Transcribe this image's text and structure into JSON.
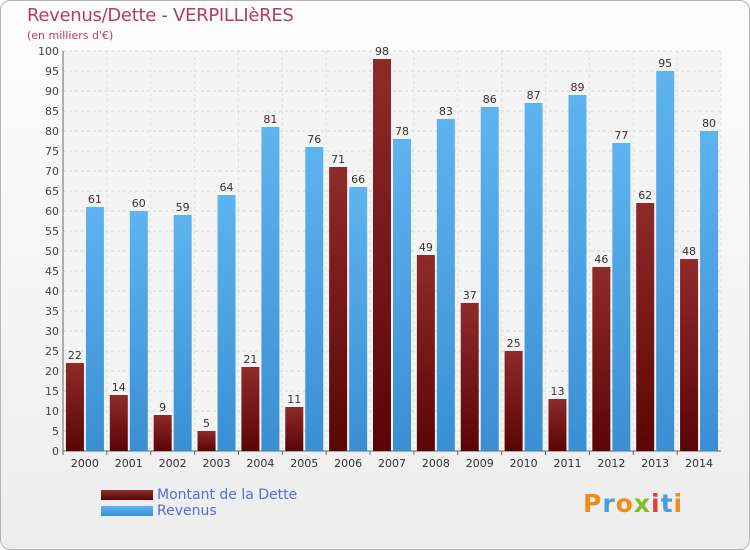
{
  "title": "Revenus/Dette - VERPILLIèRES",
  "subtitle": "(en milliers d'€)",
  "colors": {
    "dette": "#6b0f0f",
    "dette_light": "#8c2a2a",
    "revenus": "#4aa3e6",
    "revenus_light": "#5fb3ef",
    "title": "#b43a6a",
    "legend_text": "#5b6ad8"
  },
  "legend": {
    "dette_label": "Montant de la Dette",
    "revenus_label": "Revenus"
  },
  "logo": {
    "text": "Proxiti"
  },
  "chart_data": {
    "type": "bar",
    "title": "Revenus/Dette - VERPILLIèRES",
    "subtitle": "(en milliers d'€)",
    "categories": [
      "2000",
      "2001",
      "2002",
      "2003",
      "2004",
      "2005",
      "2006",
      "2007",
      "2008",
      "2009",
      "2010",
      "2011",
      "2012",
      "2013",
      "2014"
    ],
    "series": [
      {
        "name": "Montant de la Dette",
        "values": [
          22,
          14,
          9,
          5,
          21,
          11,
          71,
          98,
          49,
          37,
          25,
          13,
          46,
          62,
          48
        ]
      },
      {
        "name": "Revenus",
        "values": [
          61,
          60,
          59,
          64,
          81,
          76,
          66,
          78,
          83,
          86,
          87,
          89,
          77,
          95,
          80
        ]
      }
    ],
    "ylim": [
      0,
      100
    ],
    "ytick_step": 5,
    "grid": true,
    "legend_position": "bottom-left",
    "show_data_labels": true
  }
}
